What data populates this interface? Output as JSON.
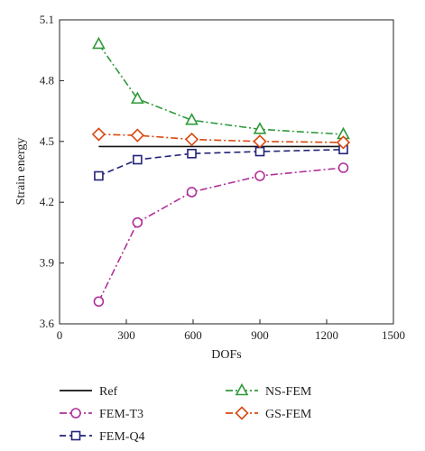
{
  "chart_data": {
    "type": "line",
    "xlabel": "DOFs",
    "ylabel": "Strain energy",
    "xlim": [
      0,
      1500
    ],
    "ylim": [
      3.6,
      5.1
    ],
    "xticks": [
      "0",
      "300",
      "600",
      "900",
      "1200",
      "1500"
    ],
    "yticks": [
      "3.6",
      "3.9",
      "4.2",
      "4.5",
      "4.8",
      "5.1"
    ],
    "grid": false,
    "legend_position": "bottom",
    "series": [
      {
        "name": "Ref",
        "color": "#111111",
        "dash": "solid",
        "marker": "none",
        "x": [
          176,
          1275
        ],
        "y": [
          4.475,
          4.475
        ]
      },
      {
        "name": "FEM-T3",
        "color": "#b0309a",
        "dash": "dashdot",
        "marker": "circle",
        "x": [
          176,
          350,
          594,
          900,
          1275
        ],
        "y": [
          3.71,
          4.1,
          4.25,
          4.33,
          4.37
        ]
      },
      {
        "name": "FEM-Q4",
        "color": "#23237a",
        "dash": "dashed",
        "marker": "square",
        "x": [
          176,
          350,
          594,
          900,
          1275
        ],
        "y": [
          4.33,
          4.41,
          4.44,
          4.45,
          4.46
        ]
      },
      {
        "name": "NS-FEM",
        "color": "#2e9a3a",
        "dash": "dashdot",
        "marker": "triangle",
        "x": [
          176,
          350,
          594,
          900,
          1275
        ],
        "y": [
          4.98,
          4.71,
          4.605,
          4.56,
          4.535
        ]
      },
      {
        "name": "GS-FEM",
        "color": "#d9480f",
        "dash": "dashdot",
        "marker": "diamond",
        "x": [
          176,
          350,
          594,
          900,
          1275
        ],
        "y": [
          4.535,
          4.53,
          4.51,
          4.5,
          4.495
        ]
      }
    ]
  }
}
